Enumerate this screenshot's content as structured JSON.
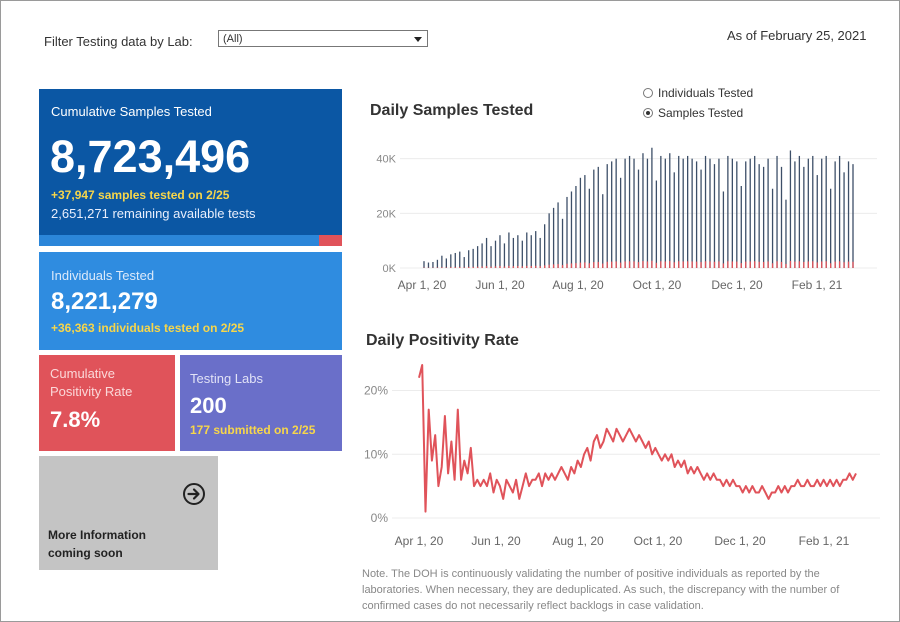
{
  "filter": {
    "label": "Filter Testing data by Lab:",
    "value": "(All)"
  },
  "as_of": "As of February 25, 2021",
  "cards": {
    "samples": {
      "title": "Cumulative Samples Tested",
      "value": "8,723,496",
      "sub1": "+37,947 samples tested on 2/25",
      "sub2": "2,651,271 remaining available tests"
    },
    "individuals": {
      "title": "Individuals Tested",
      "value": "8,221,279",
      "sub1": "+36,363  individuals  tested on 2/25"
    },
    "positivity": {
      "title_line1": "Cumulative",
      "title_line2": "Positivity Rate",
      "value": "7.8%"
    },
    "labs": {
      "title": "Testing Labs",
      "value": "200",
      "sub1": "177 submitted on 2/25"
    },
    "more": {
      "line1": "More Information",
      "line2": "coming soon"
    }
  },
  "radio": {
    "opt1": "Individuals Tested",
    "opt2": "Samples Tested",
    "selected": "Samples Tested"
  },
  "colors": {
    "dark_blue": "#0b57a4",
    "blue": "#2f8ce0",
    "red": "#e0535a",
    "purple": "#6a6fc9",
    "gray": "#c4c4c4",
    "bar": "#3d4f68",
    "yellow": "#f7d64a"
  },
  "note": "Note. The DOH is continuously validating the number of positive individuals as reported by the laboratories. When necessary, they are deduplicated. As such, the discrepancy with the number of confirmed cases do not necessarily reflect backlogs in case validation.",
  "chart_data": [
    {
      "type": "bar",
      "title": "Daily Samples Tested",
      "y_ticks": [
        "40K",
        "20K",
        "0K"
      ],
      "y_tick_values": [
        40000,
        20000,
        0
      ],
      "x_ticks": [
        "Apr 1, 20",
        "Jun 1, 20",
        "Aug 1, 20",
        "Oct 1, 20",
        "Dec 1, 20",
        "Feb 1, 21"
      ],
      "ylim": [
        0,
        45000
      ],
      "grid": true,
      "series": [
        {
          "name": "Samples Tested",
          "values": [
            2500,
            2000,
            2200,
            3000,
            4500,
            3500,
            5000,
            5500,
            6000,
            4000,
            6500,
            7000,
            8000,
            9000,
            11000,
            8000,
            10000,
            12000,
            9000,
            13000,
            11000,
            12000,
            10000,
            13000,
            12000,
            13500,
            11000,
            16000,
            20000,
            22000,
            24000,
            18000,
            26000,
            28000,
            30000,
            33000,
            34000,
            29000,
            36000,
            37000,
            27000,
            38000,
            39000,
            40000,
            33000,
            40000,
            41000,
            40000,
            36000,
            42000,
            40000,
            44000,
            32000,
            41000,
            40000,
            42000,
            35000,
            41000,
            40000,
            41000,
            40000,
            39000,
            36000,
            41000,
            40000,
            38000,
            40000,
            28000,
            41000,
            40000,
            39000,
            30000,
            39000,
            40000,
            41000,
            38000,
            37000,
            40000,
            29000,
            41000,
            37000,
            25000,
            43000,
            39000,
            41000,
            37000,
            40000,
            41000,
            34000,
            40000,
            41000,
            29000,
            39000,
            41000,
            35000,
            39000,
            38000
          ]
        }
      ]
    },
    {
      "type": "line",
      "title": "Daily Positivity Rate",
      "y_ticks": [
        "20%",
        "10%",
        "0%"
      ],
      "y_tick_values": [
        20,
        10,
        0
      ],
      "x_ticks": [
        "Apr 1, 20",
        "Jun 1, 20",
        "Aug 1, 20",
        "Oct 1, 20",
        "Dec 1, 20",
        "Feb 1, 21"
      ],
      "ylim": [
        0,
        24
      ],
      "grid": true,
      "series": [
        {
          "name": "Positivity Rate",
          "values": [
            22,
            24,
            1,
            17,
            9,
            13,
            5,
            8,
            16,
            7,
            12,
            6,
            17,
            6,
            9,
            7,
            11,
            5,
            6,
            5,
            6,
            5,
            7,
            4,
            6,
            5,
            3,
            6,
            5,
            4,
            6,
            3,
            5,
            7,
            5,
            6,
            6,
            7,
            5,
            7,
            6,
            7,
            6,
            7,
            8,
            7,
            6,
            8,
            7,
            9,
            8,
            10,
            11,
            9,
            12,
            13,
            11,
            12,
            14,
            13,
            12,
            14,
            13,
            12,
            13,
            14,
            13,
            12,
            13,
            12,
            11,
            12,
            10,
            11,
            10,
            9,
            10,
            9,
            10,
            8,
            9,
            8,
            9,
            7,
            8,
            7,
            8,
            7,
            6,
            7,
            6,
            7,
            6,
            6,
            5,
            6,
            5,
            6,
            5,
            5,
            4,
            5,
            4,
            5,
            4,
            4,
            5,
            4,
            3,
            4,
            4,
            5,
            4,
            5,
            4,
            5,
            5,
            6,
            5,
            5,
            6,
            5,
            5,
            6,
            5,
            6,
            5,
            6,
            5,
            6,
            5,
            6,
            6,
            7,
            6,
            7
          ]
        }
      ]
    }
  ]
}
